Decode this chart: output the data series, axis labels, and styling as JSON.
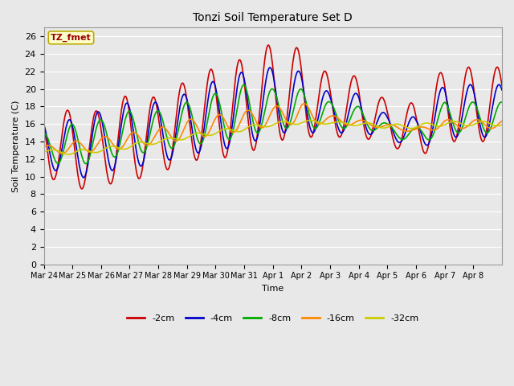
{
  "title": "Tonzi Soil Temperature Set D",
  "xlabel": "Time",
  "ylabel": "Soil Temperature (C)",
  "ylim": [
    0,
    27
  ],
  "yticks": [
    0,
    2,
    4,
    6,
    8,
    10,
    12,
    14,
    16,
    18,
    20,
    22,
    24,
    26
  ],
  "bg_color": "#e8e8e8",
  "legend_label": "TZ_fmet",
  "legend_bg": "#ffffcc",
  "legend_border": "#bbaa00",
  "series": [
    {
      "label": "-2cm",
      "color": "#cc0000",
      "lw": 1.2
    },
    {
      "label": "-4cm",
      "color": "#0000cc",
      "lw": 1.2
    },
    {
      "label": "-8cm",
      "color": "#00aa00",
      "lw": 1.2
    },
    {
      "label": "-16cm",
      "color": "#ff8800",
      "lw": 1.2
    },
    {
      "label": "-32cm",
      "color": "#cccc00",
      "lw": 1.2
    }
  ],
  "x_tick_labels": [
    "Mar 24",
    "Mar 25",
    "Mar 26",
    "Mar 27",
    "Mar 28",
    "Mar 29",
    "Mar 30",
    "Mar 31",
    "Apr 1",
    "Apr 2",
    "Apr 3",
    "Apr 4",
    "Apr 5",
    "Apr 6",
    "Apr 7",
    "Apr 8"
  ],
  "n_days": 16,
  "pts_per_day": 48,
  "peaks_2cm": [
    18.0,
    17.5,
    17.5,
    19.5,
    19.0,
    21.0,
    22.5,
    23.5,
    25.3,
    24.6,
    21.5,
    21.5,
    18.5,
    18.4,
    22.5,
    22.5
  ],
  "troughs_2cm": [
    10.3,
    8.4,
    9.0,
    9.5,
    10.3,
    11.8,
    12.0,
    12.5,
    14.0,
    14.5,
    14.5,
    14.5,
    13.8,
    12.0,
    14.0,
    14.0
  ],
  "peaks_4cm": [
    16.5,
    16.5,
    17.5,
    18.5,
    18.5,
    19.5,
    21.0,
    22.0,
    22.5,
    22.0,
    19.5,
    19.5,
    17.0,
    16.8,
    20.5,
    20.5
  ],
  "troughs_4cm": [
    11.5,
    9.5,
    10.5,
    11.0,
    11.5,
    12.5,
    13.0,
    13.5,
    15.0,
    15.0,
    15.0,
    15.0,
    14.5,
    13.0,
    14.5,
    14.5
  ],
  "peaks_8cm": [
    15.0,
    16.0,
    16.5,
    17.5,
    17.5,
    18.5,
    19.5,
    20.5,
    20.0,
    20.0,
    18.5,
    18.0,
    16.0,
    15.5,
    18.5,
    18.5
  ],
  "troughs_8cm": [
    12.0,
    11.0,
    12.0,
    12.5,
    13.0,
    13.5,
    14.0,
    14.5,
    15.5,
    15.5,
    15.5,
    15.5,
    15.0,
    13.5,
    15.0,
    15.0
  ],
  "peaks_16cm": [
    13.5,
    14.0,
    14.5,
    15.0,
    15.5,
    16.5,
    17.0,
    17.5,
    18.0,
    18.5,
    17.0,
    16.5,
    16.0,
    15.5,
    16.5,
    16.5
  ],
  "troughs_16cm": [
    12.8,
    12.5,
    13.0,
    13.2,
    13.8,
    14.2,
    14.8,
    15.2,
    15.8,
    16.0,
    16.0,
    15.8,
    15.5,
    15.0,
    15.5,
    15.5
  ],
  "peaks_32cm": [
    13.1,
    13.0,
    13.3,
    13.8,
    14.2,
    14.8,
    15.3,
    15.8,
    16.2,
    16.5,
    16.3,
    16.2,
    16.0,
    16.0,
    16.3,
    16.3
  ],
  "troughs_32cm": [
    12.7,
    12.5,
    12.8,
    13.2,
    13.8,
    14.3,
    14.8,
    15.2,
    15.8,
    16.0,
    16.0,
    15.8,
    15.5,
    15.5,
    15.8,
    15.8
  ],
  "lag_hours": [
    0,
    1.5,
    3.5,
    7,
    12
  ],
  "peak_hour": 14
}
